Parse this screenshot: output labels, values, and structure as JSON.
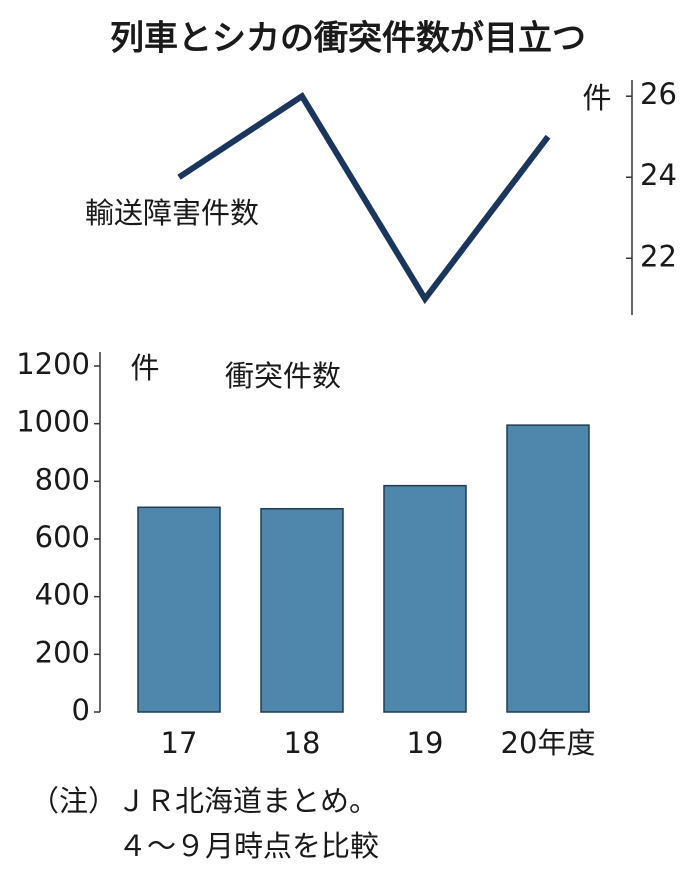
{
  "title": "列車とシカの衝突件数が目立つ",
  "chart_data": [
    {
      "type": "line",
      "label": "輸送障害件数",
      "unit": "件",
      "categories": [
        null,
        null,
        null,
        null
      ],
      "values": [
        24,
        26,
        21,
        25
      ],
      "color": "#1b365d",
      "ylim": [
        20.6,
        26.4
      ],
      "yticks": [
        22,
        24,
        26
      ]
    },
    {
      "type": "bar",
      "label": "衝突件数",
      "unit": "件",
      "categories": [
        "17",
        "18",
        "19",
        "20年度"
      ],
      "values": [
        710,
        705,
        785,
        995
      ],
      "color": "#4f86ab",
      "ylim": [
        0,
        1200
      ],
      "yticks": [
        0,
        200,
        400,
        600,
        800,
        1000,
        1200
      ]
    }
  ],
  "notes": [
    "（注）ＪＲ北海道まとめ。",
    "４～９月時点を比較"
  ]
}
